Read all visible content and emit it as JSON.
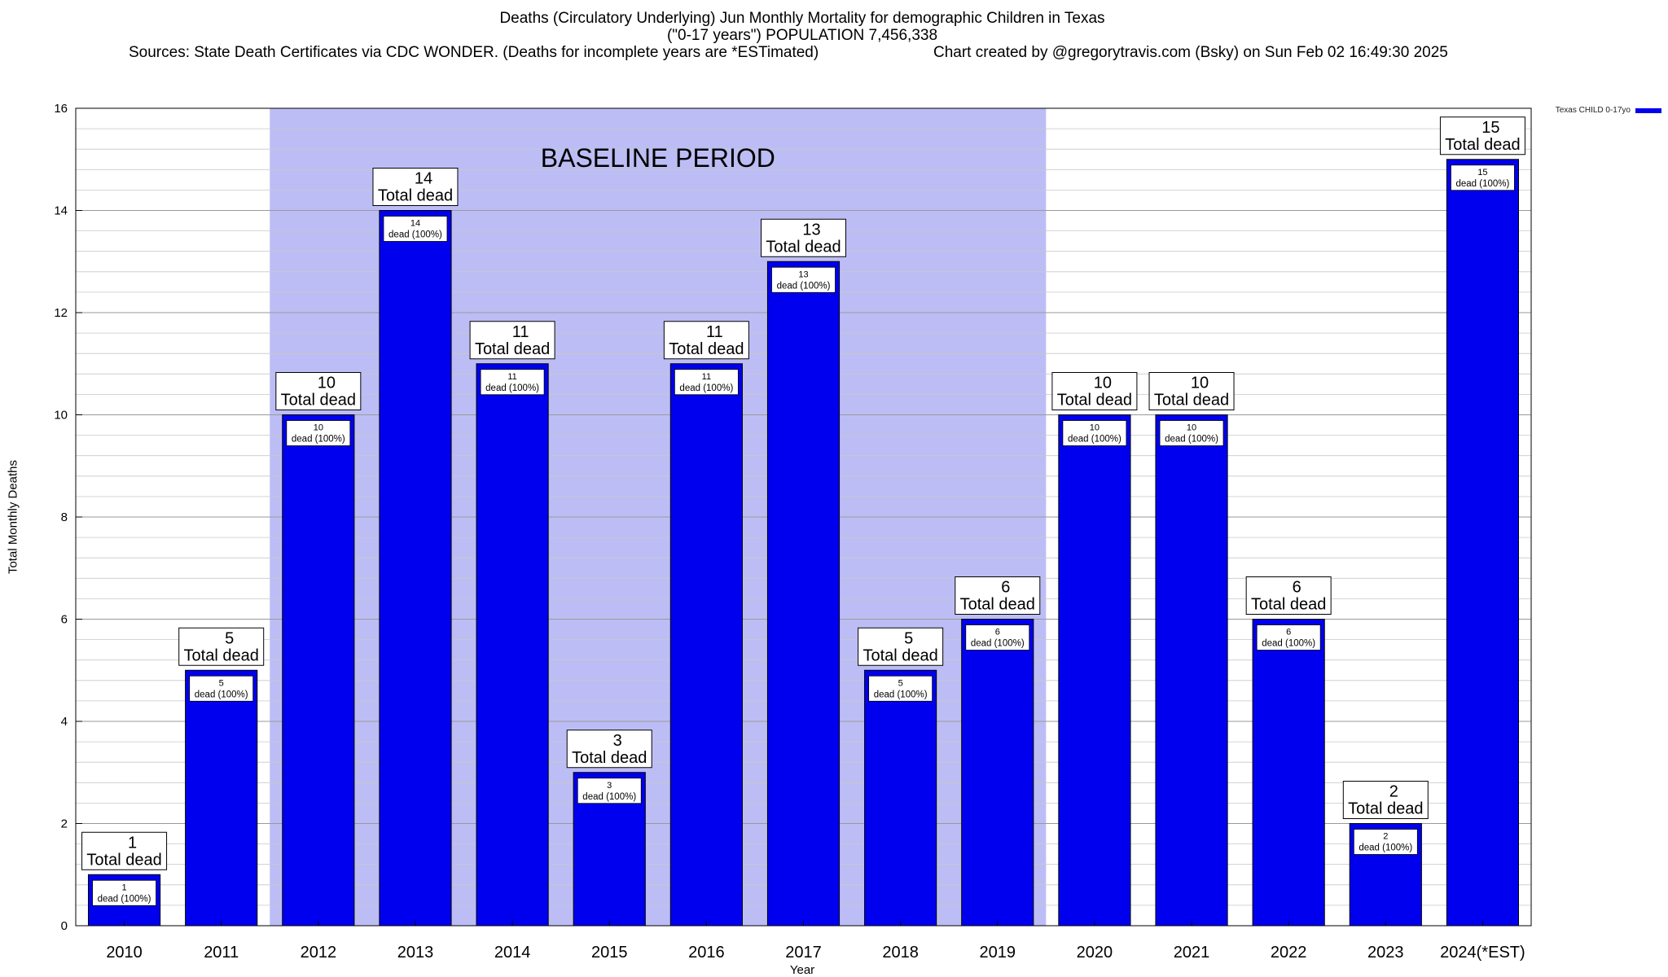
{
  "header": {
    "title_line1": "Deaths (Circulatory Underlying) Jun Monthly Mortality for demographic Children in Texas",
    "title_line2": "(\"0-17 years\") POPULATION 7,456,338",
    "sources": "Sources: State Death Certificates via CDC WONDER. (Deaths for incomplete years are *ESTimated)",
    "credit": "Chart created by @gregorytravis.com (Bsky) on Sun Feb 02 16:49:30 2025"
  },
  "chart_data": {
    "type": "bar",
    "title": "Deaths (Circulatory Underlying) Jun Monthly Mortality for demographic Children in Texas",
    "xlabel": "Year",
    "ylabel": "Total Monthly Deaths",
    "ylim": [
      0,
      16
    ],
    "y_ticks": [
      0,
      2,
      4,
      6,
      8,
      10,
      12,
      14,
      16
    ],
    "grid": true,
    "legend_position": "top-right",
    "categories": [
      "2010",
      "2011",
      "2012",
      "2013",
      "2014",
      "2015",
      "2016",
      "2017",
      "2018",
      "2019",
      "2020",
      "2021",
      "2022",
      "2023",
      "2024(*EST)"
    ],
    "series": [
      {
        "name": "Texas CHILD 0-17yo",
        "color": "#0000ee",
        "values": [
          1,
          5,
          10,
          14,
          11,
          3,
          11,
          13,
          5,
          6,
          10,
          10,
          6,
          2,
          15
        ]
      }
    ],
    "bar_top_label": "Total dead",
    "bar_inner_label": "dead (100%)",
    "baseline_period": {
      "label": "BASELINE PERIOD",
      "from": "2012",
      "to": "2019",
      "color": "#bdbdf5"
    }
  }
}
